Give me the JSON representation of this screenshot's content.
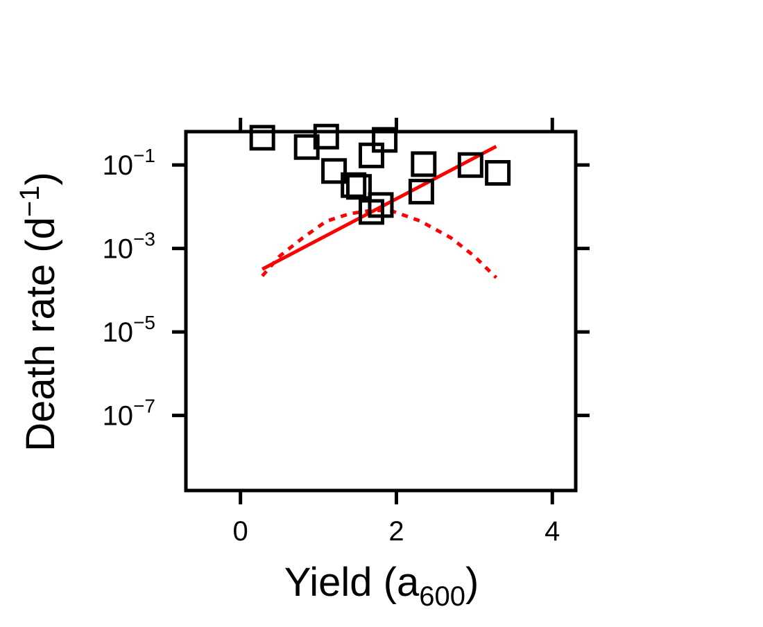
{
  "chart_data": {
    "type": "scatter",
    "title": "",
    "xlabel": {
      "main": "Yield (a",
      "sub": "600",
      "end": ")"
    },
    "ylabel": {
      "main": "Death rate (d",
      "sup": "−1",
      "end": ")"
    },
    "x_ticks": [
      {
        "value": 0,
        "label": "0"
      },
      {
        "value": 2,
        "label": "2"
      },
      {
        "value": 4,
        "label": "4"
      }
    ],
    "y_scale": "log10",
    "y_ticks": [
      {
        "exp": -1,
        "base": "10",
        "sup": "−1"
      },
      {
        "exp": -3,
        "base": "10",
        "sup": "−3"
      },
      {
        "exp": -5,
        "base": "10",
        "sup": "−5"
      },
      {
        "exp": -7,
        "base": "10",
        "sup": "−7"
      }
    ],
    "xlim": [
      -0.7,
      4.3
    ],
    "ylim_log10": [
      -8.8,
      -0.2
    ],
    "grid": false,
    "legend": "none",
    "series": [
      {
        "type": "scatter",
        "marker": "open-square",
        "color": "#000000",
        "points": [
          {
            "x": 0.28,
            "y": 0.45
          },
          {
            "x": 1.1,
            "y": 0.48
          },
          {
            "x": 1.85,
            "y": 0.4
          },
          {
            "x": 0.85,
            "y": 0.27
          },
          {
            "x": 1.68,
            "y": 0.17
          },
          {
            "x": 2.35,
            "y": 0.105
          },
          {
            "x": 2.95,
            "y": 0.1
          },
          {
            "x": 3.3,
            "y": 0.065
          },
          {
            "x": 1.2,
            "y": 0.072
          },
          {
            "x": 1.45,
            "y": 0.033
          },
          {
            "x": 1.52,
            "y": 0.03
          },
          {
            "x": 2.32,
            "y": 0.023
          },
          {
            "x": 1.8,
            "y": 0.011
          },
          {
            "x": 1.68,
            "y": 0.0075
          }
        ]
      },
      {
        "type": "line",
        "style": "solid",
        "color": "#ff0000",
        "points": [
          {
            "x": 0.28,
            "y": 0.00032
          },
          {
            "x": 3.28,
            "y": 0.28
          }
        ]
      },
      {
        "type": "line",
        "style": "dotted",
        "color": "#ff0000",
        "points": [
          {
            "x": 0.28,
            "y": 0.00022
          },
          {
            "x": 0.5,
            "y": 0.00065
          },
          {
            "x": 0.8,
            "y": 0.0018
          },
          {
            "x": 1.1,
            "y": 0.0045
          },
          {
            "x": 1.4,
            "y": 0.0068
          },
          {
            "x": 1.7,
            "y": 0.0083
          },
          {
            "x": 1.95,
            "y": 0.0078
          },
          {
            "x": 2.3,
            "y": 0.0046
          },
          {
            "x": 2.7,
            "y": 0.0018
          },
          {
            "x": 3.0,
            "y": 0.00065
          },
          {
            "x": 3.28,
            "y": 0.0002
          }
        ]
      }
    ]
  }
}
